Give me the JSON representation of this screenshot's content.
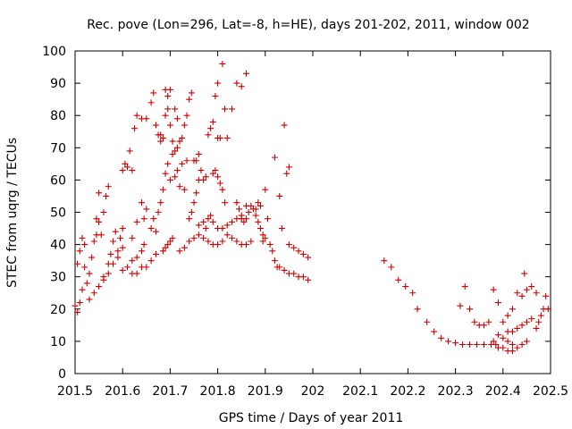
{
  "chart_data": {
    "type": "scatter",
    "title": "Rec. pove (Lon=296, Lat=-8, h=HE), days 201-202, 2011, window 002",
    "xlabel": "GPS time / Days of year 2011",
    "ylabel": "STEC from uqrg / TECUs",
    "xlim": [
      201.5,
      202.5
    ],
    "ylim": [
      0,
      100
    ],
    "xticks": [
      201.5,
      201.6,
      201.7,
      201.8,
      201.9,
      202,
      202.1,
      202.2,
      202.3,
      202.4,
      202.5
    ],
    "xtick_labels": [
      "201.5",
      "201.6",
      "201.7",
      "201.8",
      "201.9",
      "202",
      "202.1",
      "202.2",
      "202.3",
      "202.4",
      "202.5"
    ],
    "yticks": [
      0,
      10,
      20,
      30,
      40,
      50,
      60,
      70,
      80,
      90,
      100
    ],
    "ytick_labels": [
      "0",
      "10",
      "20",
      "30",
      "40",
      "50",
      "60",
      "70",
      "80",
      "90",
      "100"
    ],
    "grid": false,
    "marker": "+",
    "color": "#cc0000",
    "points": [
      [
        201.5,
        21
      ],
      [
        201.505,
        19
      ],
      [
        201.51,
        22
      ],
      [
        201.515,
        26
      ],
      [
        201.52,
        33
      ],
      [
        201.505,
        34
      ],
      [
        201.51,
        38
      ],
      [
        201.515,
        42
      ],
      [
        201.52,
        40
      ],
      [
        201.525,
        28
      ],
      [
        201.53,
        31
      ],
      [
        201.535,
        36
      ],
      [
        201.54,
        41
      ],
      [
        201.545,
        48
      ],
      [
        201.55,
        56
      ],
      [
        201.53,
        23
      ],
      [
        201.54,
        25
      ],
      [
        201.55,
        27
      ],
      [
        201.56,
        29
      ],
      [
        201.57,
        31
      ],
      [
        201.545,
        43
      ],
      [
        201.55,
        47
      ],
      [
        201.555,
        43
      ],
      [
        201.56,
        50
      ],
      [
        201.565,
        55
      ],
      [
        201.57,
        58
      ],
      [
        201.575,
        37
      ],
      [
        201.58,
        41
      ],
      [
        201.585,
        44
      ],
      [
        201.59,
        38
      ],
      [
        201.595,
        42
      ],
      [
        201.6,
        45
      ],
      [
        201.56,
        30
      ],
      [
        201.57,
        34
      ],
      [
        201.58,
        34
      ],
      [
        201.59,
        36
      ],
      [
        201.6,
        39
      ],
      [
        201.6,
        63
      ],
      [
        201.605,
        65
      ],
      [
        201.61,
        64
      ],
      [
        201.615,
        69
      ],
      [
        201.62,
        63
      ],
      [
        201.625,
        76
      ],
      [
        201.63,
        80
      ],
      [
        201.6,
        32
      ],
      [
        201.61,
        33
      ],
      [
        201.62,
        35
      ],
      [
        201.63,
        36
      ],
      [
        201.64,
        38
      ],
      [
        201.645,
        40
      ],
      [
        201.62,
        42
      ],
      [
        201.63,
        47
      ],
      [
        201.64,
        53
      ],
      [
        201.645,
        48
      ],
      [
        201.65,
        51
      ],
      [
        201.64,
        79
      ],
      [
        201.65,
        79
      ],
      [
        201.66,
        84
      ],
      [
        201.665,
        87
      ],
      [
        201.67,
        77
      ],
      [
        201.675,
        74
      ],
      [
        201.68,
        72
      ],
      [
        201.62,
        31
      ],
      [
        201.63,
        31
      ],
      [
        201.64,
        33
      ],
      [
        201.65,
        33
      ],
      [
        201.66,
        35
      ],
      [
        201.67,
        37
      ],
      [
        201.66,
        45
      ],
      [
        201.665,
        48
      ],
      [
        201.67,
        44
      ],
      [
        201.675,
        50
      ],
      [
        201.68,
        53
      ],
      [
        201.685,
        57
      ],
      [
        201.68,
        74
      ],
      [
        201.685,
        73
      ],
      [
        201.69,
        80
      ],
      [
        201.695,
        82
      ],
      [
        201.7,
        77
      ],
      [
        201.705,
        72
      ],
      [
        201.685,
        38
      ],
      [
        201.69,
        39
      ],
      [
        201.695,
        40
      ],
      [
        201.7,
        41
      ],
      [
        201.705,
        42
      ],
      [
        201.69,
        88
      ],
      [
        201.695,
        86
      ],
      [
        201.7,
        88
      ],
      [
        201.71,
        82
      ],
      [
        201.715,
        79
      ],
      [
        201.69,
        62
      ],
      [
        201.695,
        65
      ],
      [
        201.7,
        60
      ],
      [
        201.705,
        68
      ],
      [
        201.71,
        69
      ],
      [
        201.715,
        70
      ],
      [
        201.71,
        61
      ],
      [
        201.715,
        63
      ],
      [
        201.72,
        58
      ],
      [
        201.725,
        65
      ],
      [
        201.73,
        57
      ],
      [
        201.735,
        66
      ],
      [
        201.72,
        72
      ],
      [
        201.725,
        73
      ],
      [
        201.73,
        77
      ],
      [
        201.735,
        80
      ],
      [
        201.74,
        85
      ],
      [
        201.745,
        87
      ],
      [
        201.72,
        38
      ],
      [
        201.73,
        39
      ],
      [
        201.74,
        41
      ],
      [
        201.75,
        42
      ],
      [
        201.76,
        43
      ],
      [
        201.74,
        48
      ],
      [
        201.745,
        50
      ],
      [
        201.75,
        53
      ],
      [
        201.755,
        56
      ],
      [
        201.76,
        60
      ],
      [
        201.75,
        66
      ],
      [
        201.755,
        66
      ],
      [
        201.76,
        68
      ],
      [
        201.765,
        63
      ],
      [
        201.77,
        60
      ],
      [
        201.775,
        61
      ],
      [
        201.76,
        46
      ],
      [
        201.77,
        47
      ],
      [
        201.775,
        45
      ],
      [
        201.78,
        48
      ],
      [
        201.785,
        49
      ],
      [
        201.79,
        47
      ],
      [
        201.77,
        42
      ],
      [
        201.78,
        41
      ],
      [
        201.79,
        40
      ],
      [
        201.8,
        40
      ],
      [
        201.81,
        41
      ],
      [
        201.78,
        74
      ],
      [
        201.785,
        76
      ],
      [
        201.79,
        78
      ],
      [
        201.795,
        86
      ],
      [
        201.8,
        90
      ],
      [
        201.79,
        62
      ],
      [
        201.795,
        63
      ],
      [
        201.8,
        61
      ],
      [
        201.805,
        59
      ],
      [
        201.81,
        57
      ],
      [
        201.815,
        53
      ],
      [
        201.8,
        73
      ],
      [
        201.805,
        73
      ],
      [
        201.81,
        96
      ],
      [
        201.815,
        82
      ],
      [
        201.82,
        73
      ],
      [
        201.8,
        45
      ],
      [
        201.81,
        45
      ],
      [
        201.82,
        46
      ],
      [
        201.83,
        47
      ],
      [
        201.84,
        48
      ],
      [
        201.85,
        48
      ],
      [
        201.86,
        48
      ],
      [
        201.82,
        43
      ],
      [
        201.83,
        42
      ],
      [
        201.84,
        41
      ],
      [
        201.85,
        40
      ],
      [
        201.86,
        40
      ],
      [
        201.87,
        41
      ],
      [
        201.83,
        82
      ],
      [
        201.84,
        90
      ],
      [
        201.85,
        89
      ],
      [
        201.86,
        93
      ],
      [
        201.84,
        53
      ],
      [
        201.845,
        51
      ],
      [
        201.85,
        49
      ],
      [
        201.855,
        47
      ],
      [
        201.86,
        52
      ],
      [
        201.865,
        50
      ],
      [
        201.87,
        52
      ],
      [
        201.875,
        51
      ],
      [
        201.88,
        51
      ],
      [
        201.885,
        53
      ],
      [
        201.89,
        52
      ],
      [
        201.895,
        41
      ],
      [
        201.88,
        49
      ],
      [
        201.885,
        47
      ],
      [
        201.89,
        45
      ],
      [
        201.895,
        43
      ],
      [
        201.9,
        42
      ],
      [
        201.9,
        57
      ],
      [
        201.905,
        48
      ],
      [
        201.91,
        40
      ],
      [
        201.915,
        38
      ],
      [
        201.92,
        35
      ],
      [
        201.925,
        33
      ],
      [
        201.93,
        33
      ],
      [
        201.92,
        67
      ],
      [
        201.93,
        55
      ],
      [
        201.935,
        45
      ],
      [
        201.94,
        77
      ],
      [
        201.945,
        62
      ],
      [
        201.95,
        64
      ],
      [
        201.95,
        40
      ],
      [
        201.96,
        39
      ],
      [
        201.97,
        38
      ],
      [
        201.98,
        37
      ],
      [
        201.99,
        36
      ],
      [
        201.94,
        32
      ],
      [
        201.95,
        31
      ],
      [
        201.96,
        31
      ],
      [
        201.97,
        30
      ],
      [
        201.98,
        30
      ],
      [
        201.99,
        29
      ],
      [
        202.15,
        35
      ],
      [
        202.165,
        33
      ],
      [
        202.18,
        29
      ],
      [
        202.195,
        27
      ],
      [
        202.21,
        25
      ],
      [
        202.22,
        20
      ],
      [
        202.24,
        16
      ],
      [
        202.255,
        13
      ],
      [
        202.27,
        11
      ],
      [
        202.285,
        10
      ],
      [
        202.3,
        9.5
      ],
      [
        202.315,
        9
      ],
      [
        202.33,
        9
      ],
      [
        202.345,
        9
      ],
      [
        202.36,
        9
      ],
      [
        202.375,
        9
      ],
      [
        202.385,
        9
      ],
      [
        202.31,
        21
      ],
      [
        202.32,
        27
      ],
      [
        202.33,
        20
      ],
      [
        202.34,
        16
      ],
      [
        202.35,
        15
      ],
      [
        202.36,
        15
      ],
      [
        202.37,
        16
      ],
      [
        202.38,
        26
      ],
      [
        202.39,
        22
      ],
      [
        202.4,
        16
      ],
      [
        202.41,
        18
      ],
      [
        202.42,
        20
      ],
      [
        202.38,
        10
      ],
      [
        202.39,
        12
      ],
      [
        202.4,
        11
      ],
      [
        202.41,
        10
      ],
      [
        202.42,
        9
      ],
      [
        202.39,
        8
      ],
      [
        202.4,
        8
      ],
      [
        202.41,
        7
      ],
      [
        202.42,
        7
      ],
      [
        202.43,
        8
      ],
      [
        202.44,
        9
      ],
      [
        202.45,
        10
      ],
      [
        202.41,
        13
      ],
      [
        202.42,
        13
      ],
      [
        202.43,
        14
      ],
      [
        202.44,
        15
      ],
      [
        202.45,
        16
      ],
      [
        202.46,
        17
      ],
      [
        202.43,
        25
      ],
      [
        202.44,
        24
      ],
      [
        202.445,
        31
      ],
      [
        202.45,
        26
      ],
      [
        202.46,
        27
      ],
      [
        202.47,
        25
      ],
      [
        202.47,
        14
      ],
      [
        202.475,
        16
      ],
      [
        202.48,
        18
      ],
      [
        202.485,
        20
      ],
      [
        202.49,
        24
      ],
      [
        202.495,
        20
      ]
    ]
  }
}
